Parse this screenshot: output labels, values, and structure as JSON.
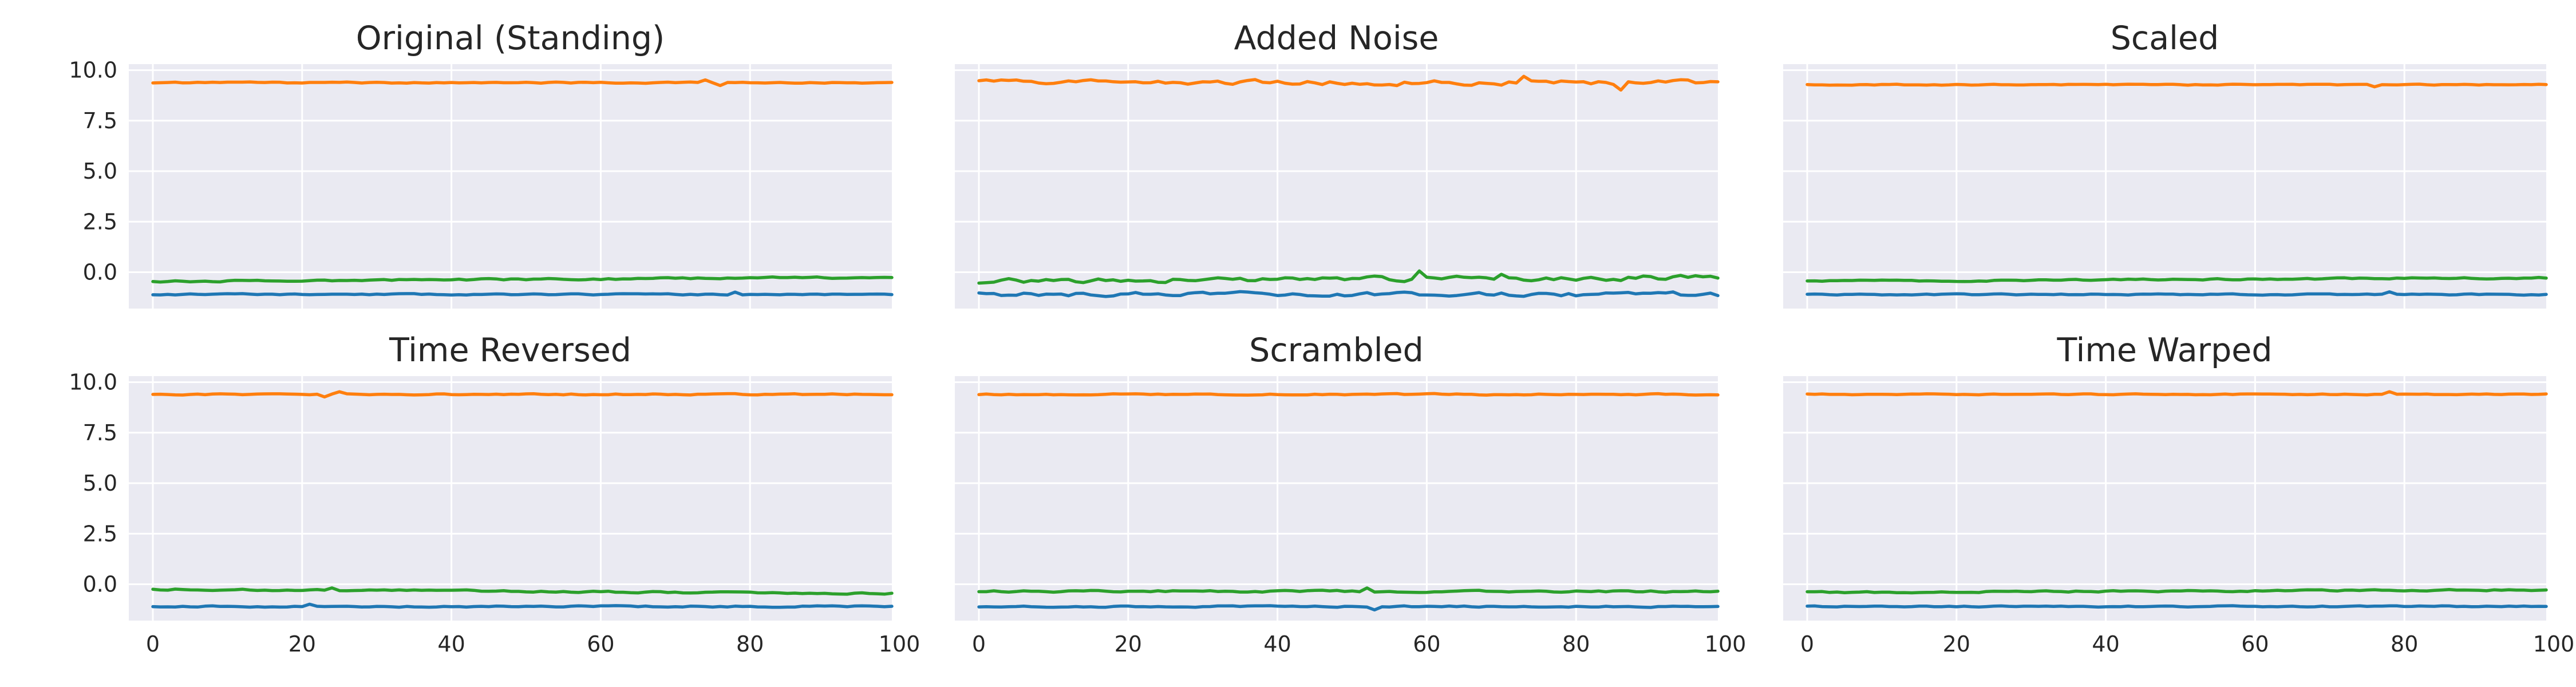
{
  "colors": {
    "background": "#ffffff",
    "axes_face": "#eaeaf2",
    "grid": "#ffffff",
    "text": "#262626",
    "series_0": "#1f77b4",
    "series_1": "#ff7f0e",
    "series_2": "#2ca02c"
  },
  "chart_data": [
    {
      "type": "line",
      "title": "Original (Standing)",
      "xlim": [
        0,
        99
      ],
      "ylim": [
        -1.8,
        10.3
      ],
      "xticks": [
        0,
        20,
        40,
        60,
        80,
        100
      ],
      "yticks": [
        10.0,
        7.5,
        5.0,
        2.5,
        0.0
      ],
      "grid": true,
      "show_xticklabels": false,
      "show_yticklabels": true,
      "series": [
        {
          "color": "#1f77b4",
          "base": -1.1,
          "amp": 0.05,
          "seed": 11,
          "dips": [
            [
              78,
              0.12
            ]
          ]
        },
        {
          "color": "#ff7f0e",
          "base": 9.38,
          "amp": 0.05,
          "seed": 12,
          "dips": [
            [
              74,
              0.15
            ],
            [
              76,
              -0.12
            ]
          ]
        },
        {
          "color": "#2ca02c",
          "base": -0.45,
          "amp": 0.07,
          "seed": 13,
          "trend": 0.2
        }
      ]
    },
    {
      "type": "line",
      "title": "Added Noise",
      "xlim": [
        0,
        99
      ],
      "ylim": [
        -1.8,
        10.3
      ],
      "xticks": [
        0,
        20,
        40,
        60,
        80,
        100
      ],
      "yticks": [
        10.0,
        7.5,
        5.0,
        2.5,
        0.0
      ],
      "grid": true,
      "show_xticklabels": false,
      "show_yticklabels": false,
      "series": [
        {
          "color": "#1f77b4",
          "base": -1.1,
          "amp": 0.18,
          "seed": 21
        },
        {
          "color": "#ff7f0e",
          "base": 9.38,
          "amp": 0.2,
          "seed": 22,
          "dips": [
            [
              73,
              0.3
            ],
            [
              86,
              -0.3
            ]
          ]
        },
        {
          "color": "#2ca02c",
          "base": -0.45,
          "amp": 0.2,
          "seed": 23,
          "trend": 0.2,
          "dips": [
            [
              59,
              0.35
            ],
            [
              70,
              0.3
            ]
          ]
        }
      ]
    },
    {
      "type": "line",
      "title": "Scaled",
      "xlim": [
        0,
        99
      ],
      "ylim": [
        -1.8,
        10.3
      ],
      "xticks": [
        0,
        20,
        40,
        60,
        80,
        100
      ],
      "yticks": [
        10.0,
        7.5,
        5.0,
        2.5,
        0.0
      ],
      "grid": true,
      "show_xticklabels": false,
      "show_yticklabels": false,
      "series": [
        {
          "color": "#1f77b4",
          "base": -1.1,
          "amp": 0.05,
          "seed": 31,
          "dips": [
            [
              78,
              0.12
            ]
          ]
        },
        {
          "color": "#ff7f0e",
          "base": 9.28,
          "amp": 0.04,
          "seed": 32,
          "dips": [
            [
              76,
              -0.1
            ]
          ]
        },
        {
          "color": "#2ca02c",
          "base": -0.45,
          "amp": 0.06,
          "seed": 33,
          "trend": 0.18
        }
      ]
    },
    {
      "type": "line",
      "title": "Time Reversed",
      "xlim": [
        0,
        99
      ],
      "ylim": [
        -1.8,
        10.3
      ],
      "xticks": [
        0,
        20,
        40,
        60,
        80,
        100
      ],
      "yticks": [
        10.0,
        7.5,
        5.0,
        2.5,
        0.0
      ],
      "grid": true,
      "show_xticklabels": true,
      "show_yticklabels": true,
      "series": [
        {
          "color": "#1f77b4",
          "base": -1.1,
          "amp": 0.06,
          "seed": 41,
          "dips": [
            [
              21,
              0.12
            ]
          ]
        },
        {
          "color": "#ff7f0e",
          "base": 9.4,
          "amp": 0.05,
          "seed": 42,
          "dips": [
            [
              23,
              -0.12
            ],
            [
              25,
              0.12
            ]
          ]
        },
        {
          "color": "#2ca02c",
          "base": -0.25,
          "amp": 0.07,
          "seed": 43,
          "trend": -0.2,
          "dips": [
            [
              24,
              0.15
            ]
          ]
        }
      ]
    },
    {
      "type": "line",
      "title": "Scrambled",
      "xlim": [
        0,
        99
      ],
      "ylim": [
        -1.8,
        10.3
      ],
      "xticks": [
        0,
        20,
        40,
        60,
        80,
        100
      ],
      "yticks": [
        10.0,
        7.5,
        5.0,
        2.5,
        0.0
      ],
      "grid": true,
      "show_xticklabels": true,
      "show_yticklabels": false,
      "series": [
        {
          "color": "#1f77b4",
          "base": -1.1,
          "amp": 0.06,
          "seed": 51,
          "dips": [
            [
              53,
              -0.15
            ]
          ]
        },
        {
          "color": "#ff7f0e",
          "base": 9.4,
          "amp": 0.05,
          "seed": 52
        },
        {
          "color": "#2ca02c",
          "base": -0.35,
          "amp": 0.07,
          "seed": 53,
          "dips": [
            [
              52,
              0.2
            ]
          ]
        }
      ]
    },
    {
      "type": "line",
      "title": "Time Warped",
      "xlim": [
        0,
        99
      ],
      "ylim": [
        -1.8,
        10.3
      ],
      "xticks": [
        0,
        20,
        40,
        60,
        80,
        100
      ],
      "yticks": [
        10.0,
        7.5,
        5.0,
        2.5,
        0.0
      ],
      "grid": true,
      "show_xticklabels": true,
      "show_yticklabels": false,
      "series": [
        {
          "color": "#1f77b4",
          "base": -1.1,
          "amp": 0.05,
          "seed": 61
        },
        {
          "color": "#ff7f0e",
          "base": 9.4,
          "amp": 0.04,
          "seed": 62,
          "dips": [
            [
              78,
              0.12
            ]
          ]
        },
        {
          "color": "#2ca02c",
          "base": -0.4,
          "amp": 0.06,
          "seed": 63,
          "trend": 0.12
        }
      ]
    }
  ]
}
